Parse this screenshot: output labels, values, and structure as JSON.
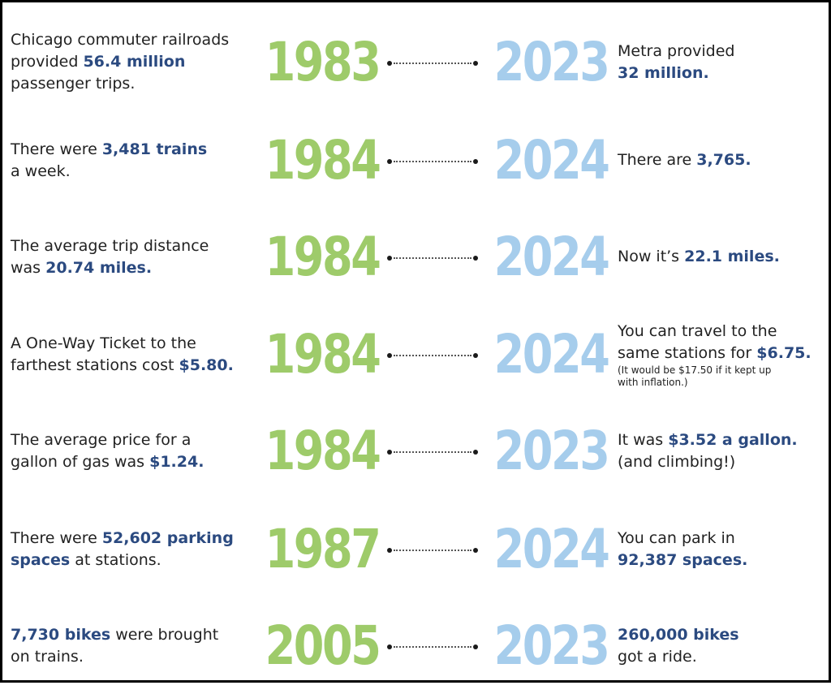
{
  "colors": {
    "accent_blue_text": "#2b4a80",
    "old_year_green": "#9ecb6a",
    "new_year_light_blue": "#a6cdec",
    "body_text": "#222222"
  },
  "rows": [
    {
      "left": {
        "l1": "Chicago commuter railroads",
        "l2a": "provided ",
        "l2b": "56.4 million",
        "l3": "passenger trips."
      },
      "year_old": "1983",
      "year_new": "2023",
      "right": {
        "l1": "Metra provided",
        "l2": "32 million."
      }
    },
    {
      "left": {
        "l1a": "There were ",
        "l1b": "3,481 trains",
        "l2": "a week."
      },
      "year_old": "1984",
      "year_new": "2024",
      "right": {
        "l1a": "There are ",
        "l1b": "3,765."
      }
    },
    {
      "left": {
        "l1": "The average trip distance",
        "l2a": "was ",
        "l2b": "20.74 miles."
      },
      "year_old": "1984",
      "year_new": "2024",
      "right": {
        "l1a": "Now it’s ",
        "l1b": "22.1 miles."
      }
    },
    {
      "left": {
        "l1": "A One-Way Ticket to the",
        "l2a": "farthest stations cost ",
        "l2b": "$5.80."
      },
      "year_old": "1984",
      "year_new": "2024",
      "right": {
        "l1": "You can travel to the",
        "l2a": "same stations for ",
        "l2b": "$6.75.",
        "n1": "(It would be $17.50 if it kept up",
        "n2": "with inflation.)"
      }
    },
    {
      "left": {
        "l1": "The average price for a",
        "l2a": "gallon of gas was ",
        "l2b": "$1.24."
      },
      "year_old": "1984",
      "year_new": "2023",
      "right": {
        "l1a": "It was ",
        "l1b": "$3.52 a gallon.",
        "l2": "(and climbing!)"
      }
    },
    {
      "left": {
        "l1a": "There were ",
        "l1b": "52,602 parking",
        "l2a": "spaces",
        "l2b": " at stations."
      },
      "year_old": "1987",
      "year_new": "2024",
      "right": {
        "l1": "You can park in",
        "l2": "92,387 spaces."
      }
    },
    {
      "left": {
        "l1a": "7,730 bikes",
        "l1b": " were brought",
        "l2": "on trains."
      },
      "year_old": "2005",
      "year_new": "2023",
      "right": {
        "l1": "260,000 bikes",
        "l2": "got a ride."
      }
    }
  ]
}
